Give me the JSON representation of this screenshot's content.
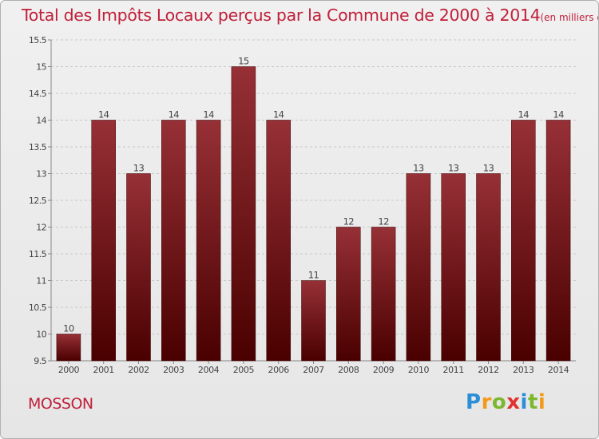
{
  "title": "Total des Impôts Locaux perçus par la Commune de 2000 à 2014",
  "title_unit": "(en milliers d'€)",
  "commune": "MOSSON",
  "logo": {
    "letters": [
      "P",
      "r",
      "o",
      "x",
      "i",
      "t",
      "i"
    ],
    "colors": [
      "#2a8fd6",
      "#f39a1b",
      "#7cb82f",
      "#e0322e",
      "#2a8fd6",
      "#7cb82f",
      "#f39a1b"
    ]
  },
  "colors": {
    "bar_top": "#963036",
    "bar_bottom": "#4a0000",
    "title": "#c0203a"
  },
  "chart_data": {
    "type": "bar",
    "title": "Total des Impôts Locaux perçus par la Commune de 2000 à 2014",
    "categories": [
      "2000",
      "2001",
      "2002",
      "2003",
      "2004",
      "2005",
      "2006",
      "2007",
      "2008",
      "2009",
      "2010",
      "2011",
      "2012",
      "2013",
      "2014"
    ],
    "values": [
      10,
      14,
      13,
      14,
      14,
      15,
      14,
      11,
      12,
      12,
      13,
      13,
      13,
      14,
      14
    ],
    "data_labels": [
      "10",
      "14",
      "13",
      "14",
      "14",
      "15",
      "14",
      "11",
      "12",
      "12",
      "13",
      "13",
      "13",
      "14",
      "14"
    ],
    "ylim": [
      9.5,
      15.5
    ],
    "yticks": [
      "9.5",
      "10",
      "10.5",
      "11",
      "11.5",
      "12",
      "12.5",
      "13",
      "13.5",
      "14",
      "14.5",
      "15",
      "15.5"
    ],
    "grid": true
  }
}
